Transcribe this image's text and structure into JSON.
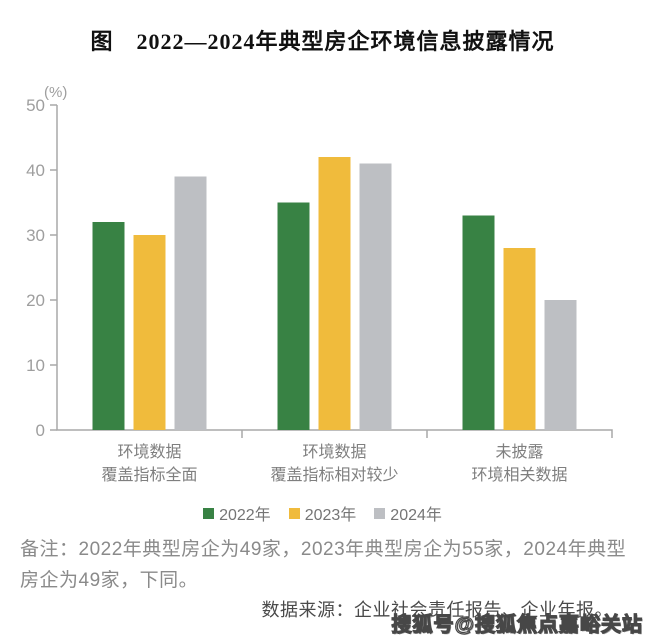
{
  "title": "图　2022—2024年典型房企环境信息披露情况",
  "chart_data": {
    "type": "bar",
    "title": "图　2022—2024年典型房企环境信息披露情况",
    "unit_label": "(%)",
    "xlabel": "",
    "ylabel": "(%)",
    "ylim": [
      0,
      50
    ],
    "ytick_step": 10,
    "yticks": [
      0,
      10,
      20,
      30,
      40,
      50
    ],
    "grid": false,
    "legend_position": "bottom",
    "categories": [
      [
        "环境数据",
        "覆盖指标全面"
      ],
      [
        "环境数据",
        "覆盖指标相对较少"
      ],
      [
        "未披露",
        "环境相关数据"
      ]
    ],
    "series": [
      {
        "name": "2022年",
        "color": "#388244",
        "values": [
          32,
          35,
          33
        ]
      },
      {
        "name": "2023年",
        "color": "#f0bb3c",
        "values": [
          30,
          42,
          28
        ]
      },
      {
        "name": "2024年",
        "color": "#bdbfc3",
        "values": [
          39,
          41,
          20
        ]
      }
    ]
  },
  "note": "备注：2022年典型房企为49家，2023年典型房企为55家，2024年典型房企为49家，下同。",
  "source": "数据来源：企业社会责任报告、企业年报。",
  "watermark": "搜狐号@搜狐焦点嘉峪关站",
  "colors": {
    "series_2022": "#388244",
    "series_2023": "#f0bb3c",
    "series_2024": "#bdbfc3",
    "axis": "#a8a8a8",
    "tick_text": "#9e9e9e",
    "category_text": "#7f7f7f",
    "note_text": "#8a8a8a",
    "source_text": "#4a4a4a"
  }
}
